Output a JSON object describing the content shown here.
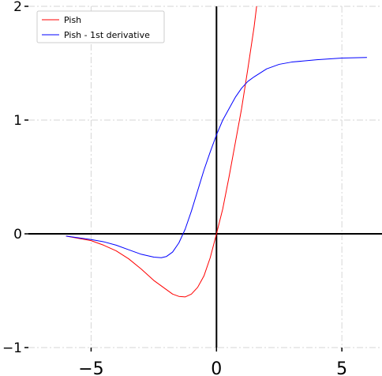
{
  "chart_data": {
    "type": "line",
    "title": "",
    "xlabel": "",
    "ylabel": "",
    "xlim": [
      -7.5,
      6.6
    ],
    "ylim": [
      -1,
      2
    ],
    "x_ticks": [
      -5,
      0,
      5
    ],
    "x_tick_labels": [
      "−5",
      "0",
      "5"
    ],
    "y_ticks": [
      -1,
      0,
      1,
      2
    ],
    "y_tick_labels": [
      "−1",
      "0",
      "1",
      "2"
    ],
    "grid": true,
    "legend": "top-left",
    "series": [
      {
        "name": "Pish",
        "color": "#ff0000",
        "x": [
          -6,
          -5,
          -4.5,
          -4,
          -3.5,
          -3,
          -2.5,
          -2,
          -1.75,
          -1.5,
          -1.25,
          -1,
          -0.75,
          -0.5,
          -0.25,
          0,
          0.25,
          0.5,
          0.75,
          1,
          1.25,
          1.5,
          1.6
        ],
        "y": [
          -0.02,
          -0.06,
          -0.1,
          -0.15,
          -0.22,
          -0.31,
          -0.41,
          -0.49,
          -0.53,
          -0.55,
          -0.555,
          -0.53,
          -0.47,
          -0.37,
          -0.21,
          0,
          0.22,
          0.5,
          0.8,
          1.1,
          1.45,
          1.82,
          2.0
        ]
      },
      {
        "name": "Pish - 1st derivative",
        "color": "#0000ff",
        "x": [
          -6,
          -5,
          -4.5,
          -4,
          -3.5,
          -3,
          -2.5,
          -2.2,
          -2,
          -1.75,
          -1.5,
          -1.25,
          -1,
          -0.75,
          -0.5,
          -0.25,
          0,
          0.25,
          0.5,
          0.75,
          1,
          1.25,
          1.5,
          2,
          2.5,
          3,
          4,
          5,
          6
        ],
        "y": [
          -0.02,
          -0.05,
          -0.07,
          -0.1,
          -0.14,
          -0.18,
          -0.205,
          -0.21,
          -0.2,
          -0.16,
          -0.08,
          0.04,
          0.2,
          0.38,
          0.56,
          0.72,
          0.87,
          1.0,
          1.1,
          1.2,
          1.28,
          1.34,
          1.38,
          1.45,
          1.49,
          1.51,
          1.53,
          1.545,
          1.55
        ]
      }
    ]
  }
}
